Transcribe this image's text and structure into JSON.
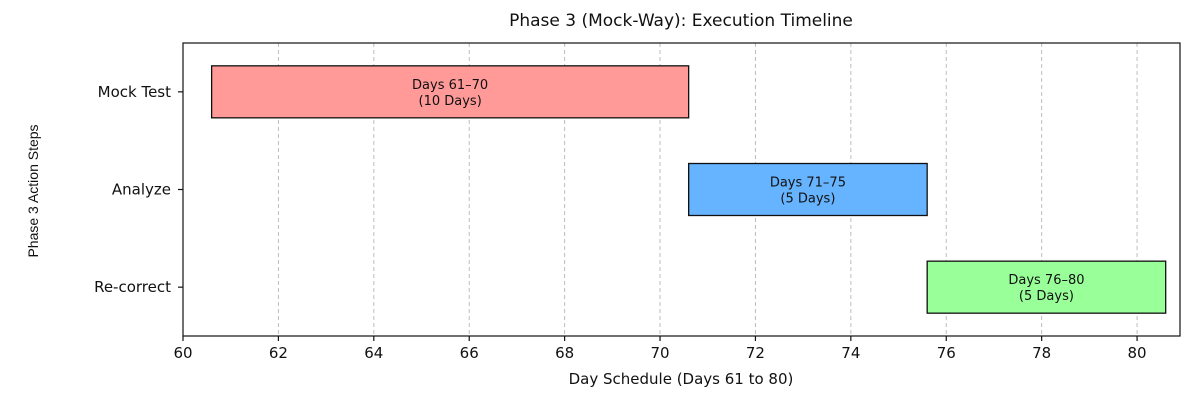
{
  "chart_data": {
    "type": "bar",
    "orientation": "horizontal-gantt",
    "title": "Phase 3 (Mock-Way): Execution Timeline",
    "xlabel": "Day Schedule (Days 61 to 80)",
    "ylabel": "Phase 3 Action Steps",
    "xlim": [
      60,
      80.9
    ],
    "xticks": [
      60,
      62,
      64,
      66,
      68,
      70,
      72,
      74,
      76,
      78,
      80
    ],
    "grid": "x-dashed",
    "tasks": [
      {
        "name": "Mock Test",
        "start": 60.6,
        "end": 70.6,
        "label_line1": "Days 61–70",
        "label_line2": "(10 Days)",
        "color": "#ff9a98"
      },
      {
        "name": "Analyze",
        "start": 70.6,
        "end": 75.6,
        "label_line1": "Days 71–75",
        "label_line2": "(5 Days)",
        "color": "#66b3ff"
      },
      {
        "name": "Re-correct",
        "start": 75.6,
        "end": 80.6,
        "label_line1": "Days 76–80",
        "label_line2": "(5 Days)",
        "color": "#99ff99"
      }
    ]
  }
}
